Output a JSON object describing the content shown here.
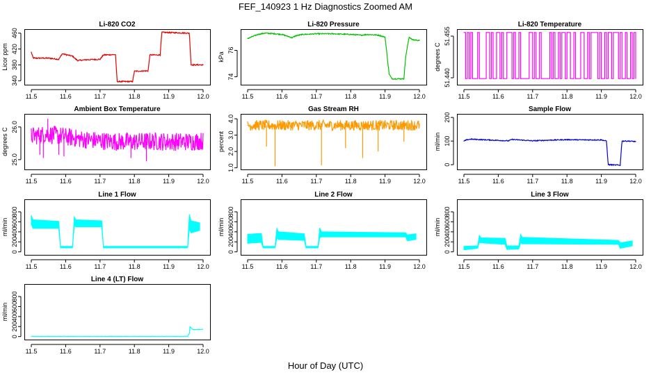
{
  "title": "FEF_140923 1 Hz Diagnostics Zoomed AM",
  "xlabel": "Hour of Day (UTC)",
  "chart_data": [
    {
      "type": "line",
      "title": "Li-820 CO2",
      "ylabel": "Licor ppm",
      "color": "#e00000",
      "xlim": [
        11.5,
        12.0
      ],
      "ylim": [
        330,
        470
      ],
      "xticks": [
        "11.5",
        "11.6",
        "11.7",
        "11.8",
        "11.9",
        "12.0"
      ],
      "yticks": [
        {
          "v": 340,
          "label": "340"
        },
        {
          "v": 380,
          "label": "380"
        },
        {
          "v": 420,
          "label": "420"
        },
        {
          "v": 460,
          "label": "460"
        }
      ],
      "noise": 1.5,
      "x": [
        11.5,
        11.505,
        11.51,
        11.55,
        11.58,
        11.59,
        11.62,
        11.63,
        11.635,
        11.66,
        11.7,
        11.71,
        11.745,
        11.75,
        11.795,
        11.8,
        11.84,
        11.845,
        11.875,
        11.88,
        11.96,
        11.965,
        12.0
      ],
      "y": [
        412,
        398,
        397,
        397,
        394,
        408,
        402,
        394,
        391,
        393,
        394,
        405,
        406,
        338,
        338,
        364,
        365,
        405,
        405,
        462,
        460,
        380,
        380
      ]
    },
    {
      "type": "line",
      "title": "Li-820 Pressure",
      "ylabel": "kPa",
      "color": "#00c000",
      "xlim": [
        11.5,
        12.0
      ],
      "ylim": [
        73.4,
        77.6
      ],
      "xticks": [
        "11.5",
        "11.6",
        "11.7",
        "11.8",
        "11.9",
        "12.0"
      ],
      "yticks": [
        {
          "v": 74,
          "label": "74"
        },
        {
          "v": 76,
          "label": "76"
        }
      ],
      "noise": 0.04,
      "x": [
        11.5,
        11.53,
        11.55,
        11.58,
        11.6,
        11.63,
        11.64,
        11.66,
        11.7,
        11.75,
        11.8,
        11.83,
        11.85,
        11.88,
        11.9,
        11.912,
        11.92,
        11.955,
        11.96,
        11.97,
        11.98,
        12.0
      ],
      "y": [
        76.9,
        77.2,
        77.3,
        77.25,
        77.2,
        76.95,
        77.1,
        77.2,
        77.25,
        77.25,
        77.2,
        77.15,
        77.2,
        77.15,
        77.0,
        74.2,
        73.85,
        73.85,
        75.5,
        77.0,
        76.8,
        76.75
      ]
    },
    {
      "type": "step",
      "title": "Li-820 Temperature",
      "ylabel": "degrees C",
      "color": "#ff00ff",
      "xlim": [
        11.5,
        12.0
      ],
      "ylim": [
        51.4375,
        51.4575
      ],
      "xticks": [
        "11.5",
        "11.6",
        "11.7",
        "11.8",
        "11.9",
        "12.0"
      ],
      "yticks": [
        {
          "v": 51.44,
          "label": "51.440"
        },
        {
          "v": 51.455,
          "label": "51.455"
        }
      ],
      "levels": [
        51.4397,
        51.4563
      ],
      "x": [
        11.5,
        11.505,
        11.51,
        11.515,
        11.52,
        11.525,
        11.54,
        11.545,
        11.565,
        11.575,
        11.58,
        11.585,
        11.595,
        11.605,
        11.61,
        11.615,
        11.625,
        11.64,
        11.645,
        11.65,
        11.66,
        11.665,
        11.69,
        11.7,
        11.705,
        11.71,
        11.72,
        11.725,
        11.75,
        11.755,
        11.76,
        11.765,
        11.775,
        11.78,
        11.785,
        11.795,
        11.8,
        11.81,
        11.82,
        11.825,
        11.84,
        11.85,
        11.86,
        11.865,
        11.87,
        11.89,
        11.895,
        11.9,
        11.91,
        11.915,
        11.92,
        11.93,
        11.935,
        11.95,
        11.955,
        11.96,
        11.97,
        11.975,
        11.985,
        11.99,
        11.995,
        12.0
      ],
      "y": [
        1,
        0,
        1,
        0,
        1,
        0,
        1,
        0,
        1,
        0,
        1,
        0,
        1,
        0,
        1,
        0,
        1,
        0,
        1,
        0,
        1,
        0,
        1,
        0,
        1,
        0,
        1,
        0,
        1,
        0,
        1,
        0,
        1,
        0,
        1,
        0,
        1,
        0,
        1,
        0,
        1,
        0,
        1,
        0,
        1,
        0,
        1,
        0,
        1,
        0,
        1,
        0,
        1,
        0,
        1,
        0,
        1,
        0,
        1,
        0,
        1,
        0
      ]
    },
    {
      "type": "line",
      "title": "Ambient Box Temperature",
      "ylabel": "degrees C",
      "color": "#ff00ff",
      "xlim": [
        11.5,
        12.0
      ],
      "ylim": [
        24.7,
        26.4
      ],
      "xticks": [
        "11.5",
        "11.6",
        "11.7",
        "11.8",
        "11.9",
        "12.0"
      ],
      "yticks": [
        {
          "v": 25.0,
          "label": "25.0"
        },
        {
          "v": 26.0,
          "label": "26.0"
        }
      ],
      "noise": 0.28,
      "x": [
        11.5,
        11.55,
        11.6,
        11.65,
        11.7,
        11.75,
        11.8,
        11.85,
        11.9,
        11.95,
        12.0
      ],
      "y": [
        25.72,
        25.78,
        25.7,
        25.62,
        25.58,
        25.55,
        25.55,
        25.56,
        25.55,
        25.55,
        25.57
      ],
      "spikes": [
        {
          "x": 11.548,
          "y": 26.25
        },
        {
          "x": 11.525,
          "y": 25.15
        },
        {
          "x": 11.535,
          "y": 25.05
        },
        {
          "x": 11.58,
          "y": 25.15
        },
        {
          "x": 11.595,
          "y": 25.1
        },
        {
          "x": 11.79,
          "y": 25.05
        },
        {
          "x": 11.835,
          "y": 24.95
        }
      ]
    },
    {
      "type": "line",
      "title": "Gas Stream RH",
      "ylabel": "percent",
      "color": "#ff9900",
      "xlim": [
        11.5,
        12.0
      ],
      "ylim": [
        0.9,
        4.3
      ],
      "xticks": [
        "11.5",
        "11.6",
        "11.7",
        "11.8",
        "11.9",
        "12.0"
      ],
      "yticks": [
        {
          "v": 1.0,
          "label": "1.0"
        },
        {
          "v": 2.0,
          "label": "2.0"
        },
        {
          "v": 3.0,
          "label": "3.0"
        },
        {
          "v": 4.0,
          "label": "4.0"
        }
      ],
      "noise": 0.32,
      "x": [
        11.5,
        11.6,
        11.7,
        11.8,
        11.9,
        12.0
      ],
      "y": [
        3.6,
        3.6,
        3.6,
        3.6,
        3.6,
        3.6
      ],
      "spikes": [
        {
          "x": 11.555,
          "y": 2.3
        },
        {
          "x": 11.58,
          "y": 1.1
        },
        {
          "x": 11.715,
          "y": 1.15
        },
        {
          "x": 11.785,
          "y": 2.2
        },
        {
          "x": 11.835,
          "y": 1.6
        },
        {
          "x": 11.88,
          "y": 2.0
        },
        {
          "x": 11.955,
          "y": 2.6
        }
      ]
    },
    {
      "type": "line",
      "title": "Sample Flow",
      "ylabel": "ml/min",
      "color": "#0000d0",
      "xlim": [
        11.5,
        12.0
      ],
      "ylim": [
        -20,
        215
      ],
      "xticks": [
        "11.5",
        "11.6",
        "11.7",
        "11.8",
        "11.9",
        "12.0"
      ],
      "yticks": [
        {
          "v": 0,
          "label": "0"
        },
        {
          "v": 100,
          "label": "100"
        },
        {
          "v": 200,
          "label": "200"
        }
      ],
      "noise": 2,
      "x": [
        11.5,
        11.51,
        11.52,
        11.6,
        11.63,
        11.64,
        11.7,
        11.75,
        11.8,
        11.85,
        11.9,
        11.915,
        11.92,
        11.955,
        11.96,
        11.98,
        12.0
      ],
      "y": [
        100,
        106,
        108,
        103,
        101,
        107,
        101,
        104,
        106,
        105,
        105,
        100,
        0,
        -2,
        100,
        100,
        98
      ]
    },
    {
      "type": "band",
      "title": "Line 1 Flow",
      "ylabel": "ml/min",
      "color": "#00ffff",
      "xlim": [
        11.5,
        12.0
      ],
      "ylim": [
        -60,
        1050
      ],
      "xticks": [
        "11.5",
        "11.6",
        "11.7",
        "11.8",
        "11.9",
        "12.0"
      ],
      "yticks": [
        {
          "v": 0,
          "label": "0"
        },
        {
          "v": 200,
          "label": "200"
        },
        {
          "v": 400,
          "label": "400"
        },
        {
          "v": 600,
          "label": "600"
        },
        {
          "v": 800,
          "label": "800"
        }
      ],
      "x": [
        11.5,
        11.505,
        11.58,
        11.585,
        11.62,
        11.625,
        11.63,
        11.705,
        11.71,
        11.955,
        11.96,
        11.965,
        11.99
      ],
      "lo": [
        550,
        470,
        470,
        80,
        80,
        520,
        500,
        500,
        80,
        80,
        450,
        380,
        430
      ],
      "hi": [
        730,
        640,
        610,
        110,
        110,
        700,
        640,
        620,
        110,
        110,
        750,
        620,
        580
      ]
    },
    {
      "type": "band",
      "title": "Line 2 Flow",
      "ylabel": "ml/min",
      "color": "#00ffff",
      "xlim": [
        11.5,
        12.0
      ],
      "ylim": [
        -60,
        1050
      ],
      "xticks": [
        "11.5",
        "11.6",
        "11.7",
        "11.8",
        "11.9",
        "12.0"
      ],
      "yticks": [
        {
          "v": 0,
          "label": "0"
        },
        {
          "v": 200,
          "label": "200"
        },
        {
          "v": 400,
          "label": "400"
        },
        {
          "v": 600,
          "label": "600"
        },
        {
          "v": 800,
          "label": "800"
        }
      ],
      "x": [
        11.5,
        11.54,
        11.545,
        11.58,
        11.585,
        11.59,
        11.665,
        11.67,
        11.705,
        11.71,
        11.715,
        11.96,
        11.965,
        11.99
      ],
      "lo": [
        170,
        190,
        80,
        80,
        270,
        250,
        230,
        80,
        80,
        280,
        300,
        300,
        220,
        250
      ],
      "hi": [
        350,
        370,
        110,
        110,
        470,
        400,
        360,
        110,
        110,
        480,
        400,
        380,
        340,
        360
      ]
    },
    {
      "type": "band",
      "title": "Line 3 Flow",
      "ylabel": "ml/min",
      "color": "#00ffff",
      "xlim": [
        11.5,
        12.0
      ],
      "ylim": [
        -60,
        1050
      ],
      "xticks": [
        "11.5",
        "11.6",
        "11.7",
        "11.8",
        "11.9",
        "12.0"
      ],
      "yticks": [
        {
          "v": 0,
          "label": "0"
        },
        {
          "v": 200,
          "label": "200"
        },
        {
          "v": 400,
          "label": "400"
        },
        {
          "v": 600,
          "label": "600"
        },
        {
          "v": 800,
          "label": "800"
        }
      ],
      "x": [
        11.5,
        11.54,
        11.545,
        11.55,
        11.62,
        11.625,
        11.66,
        11.665,
        11.67,
        11.95,
        11.955,
        11.99
      ],
      "lo": [
        40,
        70,
        190,
        180,
        150,
        50,
        60,
        180,
        160,
        150,
        70,
        120
      ],
      "hi": [
        110,
        120,
        330,
        280,
        270,
        120,
        120,
        350,
        290,
        230,
        180,
        220
      ]
    },
    {
      "type": "line",
      "title": "Line 4 (LT) Flow",
      "ylabel": "ml/min",
      "color": "#00ffff",
      "xlim": [
        11.5,
        12.0
      ],
      "ylim": [
        -60,
        1050
      ],
      "xticks": [
        "11.5",
        "11.6",
        "11.7",
        "11.8",
        "11.9",
        "12.0"
      ],
      "yticks": [
        {
          "v": 0,
          "label": "0"
        },
        {
          "v": 200,
          "label": "200"
        },
        {
          "v": 400,
          "label": "400"
        },
        {
          "v": 600,
          "label": "600"
        },
        {
          "v": 800,
          "label": "800"
        }
      ],
      "noise": 3,
      "x": [
        11.5,
        11.955,
        11.96,
        11.962,
        11.97,
        11.99
      ],
      "y": [
        5,
        5,
        60,
        200,
        140,
        145
      ]
    }
  ]
}
